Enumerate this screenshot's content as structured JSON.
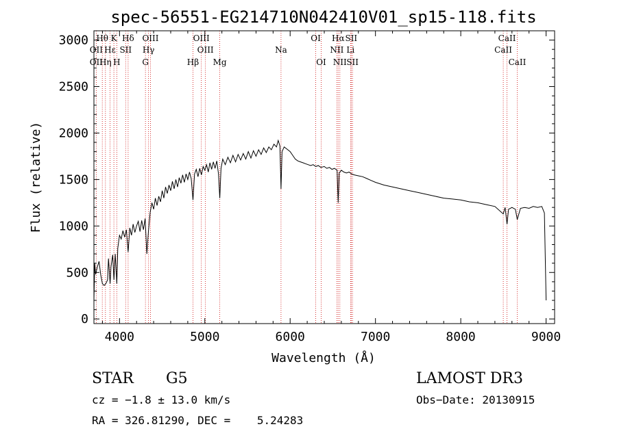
{
  "chart_data": {
    "type": "line",
    "title": "spec-56551-EG214710N042410V01_sp15-118.fits",
    "xlabel": "Wavelength (Å)",
    "ylabel": "Flux (relative)",
    "xlim": [
      3700,
      9100
    ],
    "ylim": [
      -50,
      3100
    ],
    "xticks": [
      4000,
      5000,
      6000,
      7000,
      8000,
      9000
    ],
    "yticks": [
      0,
      500,
      1000,
      1500,
      2000,
      2500,
      3000
    ],
    "grid": false,
    "series": [
      {
        "points": [
          [
            3700,
            200
          ],
          [
            3710,
            600
          ],
          [
            3720,
            480
          ],
          [
            3740,
            560
          ],
          [
            3760,
            620
          ],
          [
            3780,
            470
          ],
          [
            3800,
            380
          ],
          [
            3820,
            360
          ],
          [
            3840,
            380
          ],
          [
            3860,
            420
          ],
          [
            3870,
            650
          ],
          [
            3880,
            520
          ],
          [
            3890,
            380
          ],
          [
            3900,
            560
          ],
          [
            3920,
            690
          ],
          [
            3935,
            420
          ],
          [
            3950,
            700
          ],
          [
            3968,
            380
          ],
          [
            3980,
            760
          ],
          [
            4000,
            900
          ],
          [
            4020,
            860
          ],
          [
            4040,
            950
          ],
          [
            4060,
            880
          ],
          [
            4080,
            960
          ],
          [
            4101,
            720
          ],
          [
            4120,
            980
          ],
          [
            4140,
            900
          ],
          [
            4160,
            1020
          ],
          [
            4180,
            930
          ],
          [
            4200,
            1000
          ],
          [
            4220,
            1050
          ],
          [
            4240,
            940
          ],
          [
            4260,
            1060
          ],
          [
            4280,
            960
          ],
          [
            4300,
            1080
          ],
          [
            4320,
            700
          ],
          [
            4340,
            950
          ],
          [
            4360,
            1150
          ],
          [
            4380,
            1250
          ],
          [
            4400,
            1180
          ],
          [
            4420,
            1300
          ],
          [
            4440,
            1220
          ],
          [
            4460,
            1320
          ],
          [
            4480,
            1260
          ],
          [
            4500,
            1380
          ],
          [
            4520,
            1300
          ],
          [
            4540,
            1420
          ],
          [
            4560,
            1350
          ],
          [
            4580,
            1440
          ],
          [
            4600,
            1380
          ],
          [
            4620,
            1480
          ],
          [
            4640,
            1400
          ],
          [
            4660,
            1500
          ],
          [
            4680,
            1420
          ],
          [
            4700,
            1520
          ],
          [
            4720,
            1460
          ],
          [
            4740,
            1550
          ],
          [
            4760,
            1470
          ],
          [
            4780,
            1560
          ],
          [
            4800,
            1500
          ],
          [
            4820,
            1580
          ],
          [
            4840,
            1510
          ],
          [
            4861,
            1280
          ],
          [
            4880,
            1560
          ],
          [
            4900,
            1610
          ],
          [
            4920,
            1530
          ],
          [
            4940,
            1620
          ],
          [
            4960,
            1550
          ],
          [
            4980,
            1640
          ],
          [
            5000,
            1600
          ],
          [
            5020,
            1660
          ],
          [
            5040,
            1580
          ],
          [
            5060,
            1680
          ],
          [
            5080,
            1610
          ],
          [
            5100,
            1690
          ],
          [
            5120,
            1620
          ],
          [
            5140,
            1700
          ],
          [
            5160,
            1560
          ],
          [
            5175,
            1300
          ],
          [
            5190,
            1620
          ],
          [
            5210,
            1720
          ],
          [
            5240,
            1660
          ],
          [
            5270,
            1740
          ],
          [
            5300,
            1680
          ],
          [
            5330,
            1760
          ],
          [
            5360,
            1690
          ],
          [
            5390,
            1770
          ],
          [
            5420,
            1710
          ],
          [
            5450,
            1780
          ],
          [
            5480,
            1720
          ],
          [
            5510,
            1800
          ],
          [
            5540,
            1730
          ],
          [
            5570,
            1810
          ],
          [
            5600,
            1750
          ],
          [
            5630,
            1820
          ],
          [
            5660,
            1770
          ],
          [
            5690,
            1840
          ],
          [
            5720,
            1790
          ],
          [
            5750,
            1850
          ],
          [
            5780,
            1820
          ],
          [
            5810,
            1880
          ],
          [
            5840,
            1850
          ],
          [
            5860,
            1920
          ],
          [
            5880,
            1860
          ],
          [
            5893,
            1400
          ],
          [
            5905,
            1800
          ],
          [
            5930,
            1850
          ],
          [
            5960,
            1830
          ],
          [
            6000,
            1800
          ],
          [
            6030,
            1760
          ],
          [
            6060,
            1720
          ],
          [
            6090,
            1700
          ],
          [
            6120,
            1690
          ],
          [
            6150,
            1680
          ],
          [
            6180,
            1670
          ],
          [
            6210,
            1660
          ],
          [
            6240,
            1650
          ],
          [
            6270,
            1660
          ],
          [
            6300,
            1640
          ],
          [
            6330,
            1650
          ],
          [
            6360,
            1630
          ],
          [
            6400,
            1640
          ],
          [
            6430,
            1620
          ],
          [
            6460,
            1630
          ],
          [
            6490,
            1610
          ],
          [
            6520,
            1620
          ],
          [
            6550,
            1600
          ],
          [
            6563,
            1250
          ],
          [
            6575,
            1570
          ],
          [
            6600,
            1600
          ],
          [
            6630,
            1580
          ],
          [
            6660,
            1570
          ],
          [
            6690,
            1580
          ],
          [
            6720,
            1560
          ],
          [
            6750,
            1550
          ],
          [
            6800,
            1540
          ],
          [
            6850,
            1530
          ],
          [
            6900,
            1510
          ],
          [
            6950,
            1490
          ],
          [
            7000,
            1470
          ],
          [
            7100,
            1440
          ],
          [
            7200,
            1420
          ],
          [
            7300,
            1400
          ],
          [
            7400,
            1380
          ],
          [
            7500,
            1360
          ],
          [
            7600,
            1340
          ],
          [
            7700,
            1320
          ],
          [
            7800,
            1300
          ],
          [
            7900,
            1290
          ],
          [
            8000,
            1280
          ],
          [
            8100,
            1260
          ],
          [
            8200,
            1250
          ],
          [
            8300,
            1230
          ],
          [
            8400,
            1210
          ],
          [
            8498,
            1130
          ],
          [
            8520,
            1200
          ],
          [
            8542,
            1020
          ],
          [
            8560,
            1180
          ],
          [
            8600,
            1200
          ],
          [
            8640,
            1180
          ],
          [
            8662,
            1070
          ],
          [
            8700,
            1190
          ],
          [
            8750,
            1200
          ],
          [
            8800,
            1190
          ],
          [
            8850,
            1210
          ],
          [
            8900,
            1200
          ],
          [
            8950,
            1210
          ],
          [
            8980,
            1140
          ],
          [
            9000,
            200
          ]
        ]
      }
    ],
    "spectral_lines": [
      {
        "label": "Hθ",
        "wavelength": 3798,
        "row": 0
      },
      {
        "label": "K",
        "wavelength": 3934,
        "row": 0
      },
      {
        "label": "Hδ",
        "wavelength": 4101,
        "row": 0
      },
      {
        "label": "OIII",
        "wavelength": 4363,
        "row": 0
      },
      {
        "label": "OIII",
        "wavelength": 4959,
        "row": 0
      },
      {
        "label": "OI",
        "wavelength": 6300,
        "row": 0
      },
      {
        "label": "Hα",
        "wavelength": 6563,
        "row": 0
      },
      {
        "label": "SII",
        "wavelength": 6716,
        "row": 0
      },
      {
        "label": "CaII",
        "wavelength": 8542,
        "row": 0
      },
      {
        "label": "OII",
        "wavelength": 3727,
        "row": 1
      },
      {
        "label": "Hε",
        "wavelength": 3889,
        "row": 1
      },
      {
        "label": "SII",
        "wavelength": 4072,
        "row": 1
      },
      {
        "label": "Hγ",
        "wavelength": 4340,
        "row": 1
      },
      {
        "label": "OIII",
        "wavelength": 5007,
        "row": 1
      },
      {
        "label": "Na",
        "wavelength": 5893,
        "row": 1
      },
      {
        "label": "NII",
        "wavelength": 6548,
        "row": 1
      },
      {
        "label": "Li",
        "wavelength": 6708,
        "row": 1
      },
      {
        "label": "CaII",
        "wavelength": 8498,
        "row": 1
      },
      {
        "label": "OII",
        "wavelength": 3727,
        "row": 2
      },
      {
        "label": "Hη",
        "wavelength": 3835,
        "row": 2
      },
      {
        "label": "H",
        "wavelength": 3968,
        "row": 2
      },
      {
        "label": "G",
        "wavelength": 4304,
        "row": 2
      },
      {
        "label": "Hβ",
        "wavelength": 4861,
        "row": 2
      },
      {
        "label": "Mg",
        "wavelength": 5175,
        "row": 2
      },
      {
        "label": "OI",
        "wavelength": 6364,
        "row": 2
      },
      {
        "label": "NII",
        "wavelength": 6583,
        "row": 2
      },
      {
        "label": "SII",
        "wavelength": 6731,
        "row": 2
      },
      {
        "label": "CaII",
        "wavelength": 8662,
        "row": 2
      }
    ],
    "line_wavelengths": [
      3727,
      3798,
      3835,
      3889,
      3934,
      3968,
      4072,
      4101,
      4304,
      4340,
      4363,
      4861,
      4959,
      5007,
      5175,
      5893,
      6300,
      6364,
      6548,
      6563,
      6583,
      6708,
      6716,
      6731,
      8498,
      8542,
      8662
    ]
  },
  "info": {
    "object_class": "STAR",
    "subclass": "G5",
    "survey": "LAMOST DR3",
    "cz": "cz = −1.8 ± 13.0 km/s",
    "obs_date": "Obs−Date: 20130915",
    "coords": "RA = 326.81290, DEC =    5.24283"
  },
  "colors": {
    "spectrum": "#000000",
    "line_markers": "#cc0000"
  }
}
